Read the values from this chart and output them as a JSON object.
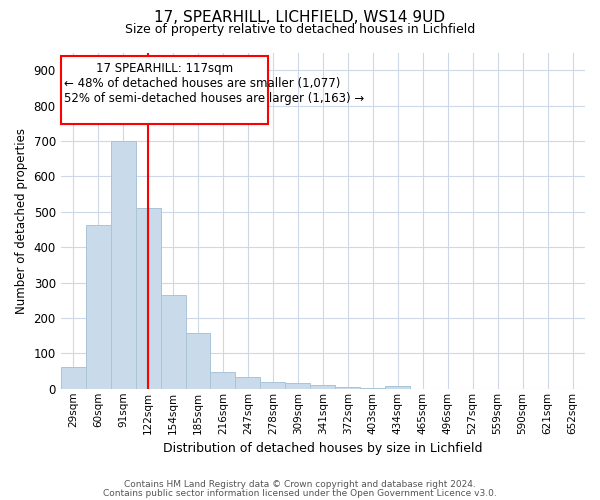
{
  "title1": "17, SPEARHILL, LICHFIELD, WS14 9UD",
  "title2": "Size of property relative to detached houses in Lichfield",
  "xlabel": "Distribution of detached houses by size in Lichfield",
  "ylabel": "Number of detached properties",
  "categories": [
    "29sqm",
    "60sqm",
    "91sqm",
    "122sqm",
    "154sqm",
    "185sqm",
    "216sqm",
    "247sqm",
    "278sqm",
    "309sqm",
    "341sqm",
    "372sqm",
    "403sqm",
    "434sqm",
    "465sqm",
    "496sqm",
    "527sqm",
    "559sqm",
    "590sqm",
    "621sqm",
    "652sqm"
  ],
  "values": [
    62,
    462,
    700,
    510,
    265,
    158,
    47,
    34,
    20,
    15,
    10,
    5,
    3,
    8,
    0,
    0,
    0,
    0,
    0,
    0,
    0
  ],
  "bar_color": "#c9daea",
  "bar_edge_color": "#aac4d8",
  "annotation_line1": "17 SPEARHILL: 117sqm",
  "annotation_line2": "← 48% of detached houses are smaller (1,077)",
  "annotation_line3": "52% of semi-detached houses are larger (1,163) →",
  "ylim": [
    0,
    950
  ],
  "yticks": [
    0,
    100,
    200,
    300,
    400,
    500,
    600,
    700,
    800,
    900
  ],
  "footnote1": "Contains HM Land Registry data © Crown copyright and database right 2024.",
  "footnote2": "Contains public sector information licensed under the Open Government Licence v3.0.",
  "background_color": "#ffffff",
  "grid_color": "#cdd8e8"
}
